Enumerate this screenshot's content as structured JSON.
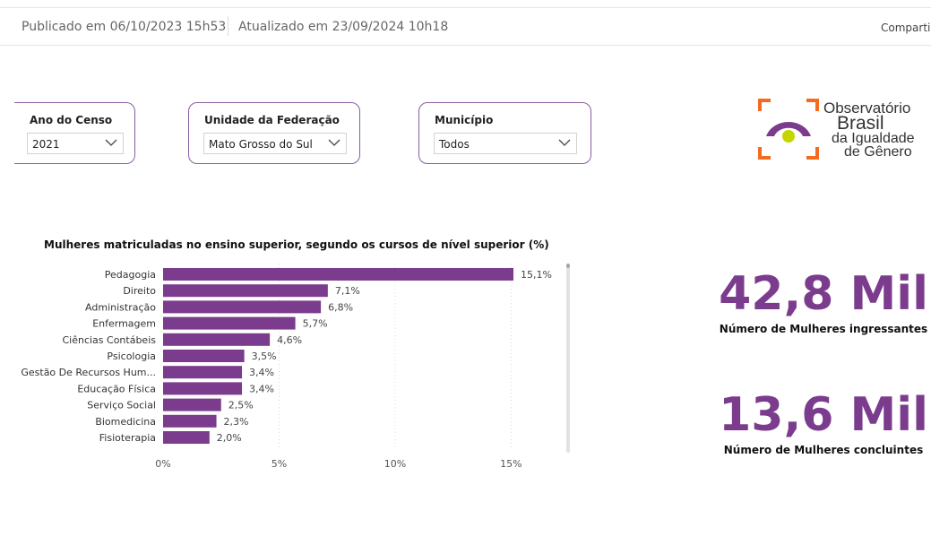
{
  "header": {
    "published": "Publicado em 06/10/2023 15h53",
    "updated": "Atualizado em 23/09/2024 10h18",
    "share_label": "Compartil"
  },
  "filters": {
    "year": {
      "label": "Ano do Censo",
      "value": "2021"
    },
    "uf": {
      "label": "Unidade da Federação",
      "value": "Mato Grosso do Sul"
    },
    "municipio": {
      "label": "Município",
      "value": "Todos"
    }
  },
  "logo": {
    "line1": "Observatório",
    "line2": "Brasil",
    "line3": "da Igualdade",
    "line4": "de Gênero",
    "colors": {
      "orange": "#f26b21",
      "purple": "#7b3c8e",
      "green": "#c5d500"
    }
  },
  "chart_title": "Mulheres matriculadas no ensino superior, segundo os cursos de nível superior (%)",
  "chart_data": {
    "type": "bar",
    "orientation": "horizontal",
    "categories": [
      "Pedagogia",
      "Direito",
      "Administração",
      "Enfermagem",
      "Ciências Contábeis",
      "Psicologia",
      "Gestão De Recursos Hum...",
      "Educação Física",
      "Serviço Social",
      "Biomedicina",
      "Fisioterapia"
    ],
    "values": [
      15.1,
      7.1,
      6.8,
      5.7,
      4.6,
      3.5,
      3.4,
      3.4,
      2.5,
      2.3,
      2.0
    ],
    "value_labels": [
      "15,1%",
      "7,1%",
      "6,8%",
      "5,7%",
      "4,6%",
      "3,5%",
      "3,4%",
      "3,4%",
      "2,5%",
      "2,3%",
      "2,0%"
    ],
    "x_ticks": [
      0,
      5,
      10,
      15
    ],
    "x_tick_labels": [
      "0%",
      "5%",
      "10%",
      "15%"
    ],
    "xlim": [
      0,
      15.1
    ],
    "bar_color": "#7b3c8e",
    "grid": true
  },
  "kpis": [
    {
      "value": "42,8 Mil",
      "caption": "Número de Mulheres ingressantes"
    },
    {
      "value": "13,6 Mil",
      "caption": "Número de Mulheres concluintes"
    }
  ]
}
